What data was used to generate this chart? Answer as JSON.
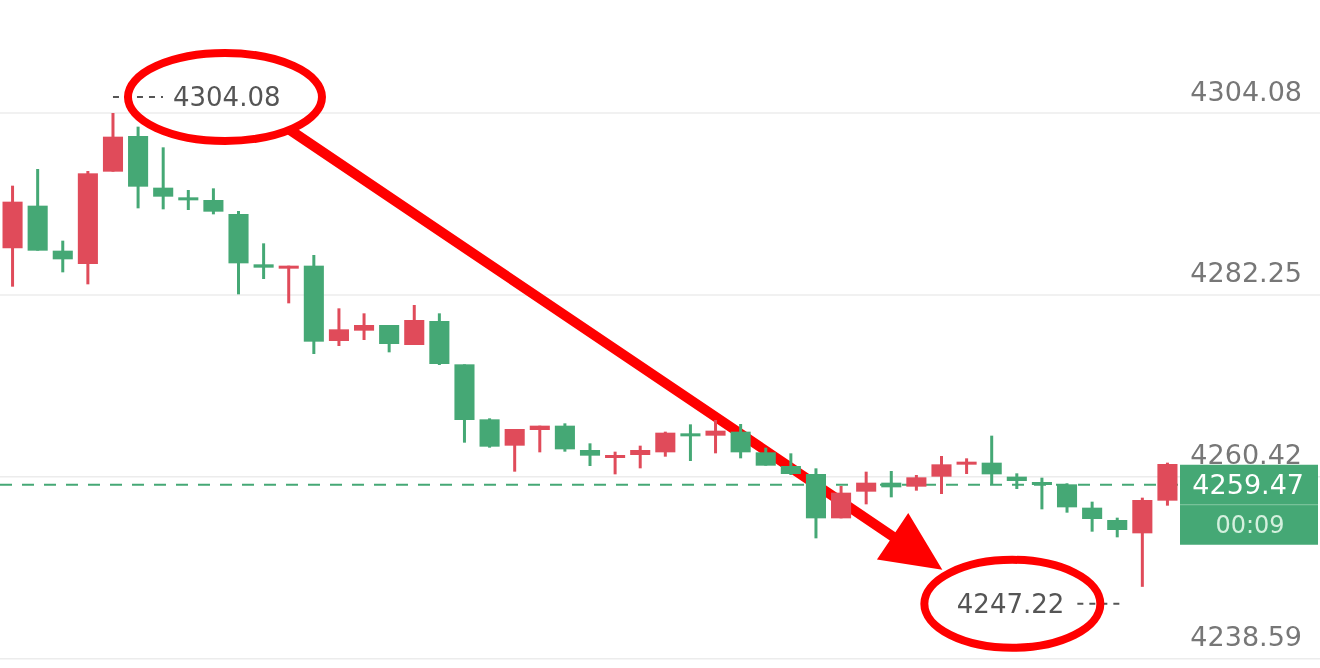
{
  "chart_data": {
    "type": "candlestick",
    "categories": [
      null,
      null,
      null,
      null,
      null,
      null,
      null,
      null,
      null,
      null,
      null,
      null,
      null,
      null,
      null,
      null,
      null,
      null,
      null,
      null,
      null,
      null,
      null,
      null,
      null,
      null,
      null,
      null,
      null,
      null,
      null,
      null,
      null,
      null,
      null,
      null,
      null,
      null,
      null,
      null,
      null,
      null,
      null,
      null,
      null,
      null,
      null
    ],
    "ohlc": [
      [
        4287.85,
        4295.36,
        4283.24,
        4293.44
      ],
      [
        4292.96,
        4297.36,
        4287.56,
        4287.56
      ],
      [
        4287.56,
        4288.76,
        4284.96,
        4286.52
      ],
      [
        4285.96,
        4297.12,
        4283.52,
        4296.84
      ],
      [
        4297.04,
        4304.08,
        4297.04,
        4301.24
      ],
      [
        4301.32,
        4302.44,
        4292.64,
        4295.24
      ],
      [
        4295.12,
        4299.96,
        4292.52,
        4294.04
      ],
      [
        4293.96,
        4294.84,
        4292.44,
        4293.64
      ],
      [
        4293.64,
        4295.04,
        4291.92,
        4292.24
      ],
      [
        4291.96,
        4292.32,
        4282.32,
        4286.04
      ],
      [
        4285.92,
        4288.44,
        4284.16,
        4285.52
      ],
      [
        4285.64,
        4285.76,
        4281.24,
        4285.76
      ],
      [
        4285.76,
        4287.04,
        4275.16,
        4276.64
      ],
      [
        4276.72,
        4280.64,
        4276.12,
        4278.12
      ],
      [
        4277.96,
        4280.04,
        4276.84,
        4278.64
      ],
      [
        4278.64,
        4278.64,
        4275.36,
        4276.36
      ],
      [
        4276.24,
        4281.04,
        4276.24,
        4279.24
      ],
      [
        4279.12,
        4280.04,
        4273.84,
        4273.96
      ],
      [
        4273.92,
        4273.92,
        4264.52,
        4267.24
      ],
      [
        4267.32,
        4267.44,
        4263.92,
        4264.04
      ],
      [
        4264.16,
        4266.16,
        4261.04,
        4266.16
      ],
      [
        4266.04,
        4266.56,
        4263.36,
        4266.56
      ],
      [
        4266.56,
        4266.84,
        4263.44,
        4263.72
      ],
      [
        4263.64,
        4264.44,
        4261.72,
        4262.96
      ],
      [
        4262.84,
        4263.44,
        4260.72,
        4263.04
      ],
      [
        4263.04,
        4264.16,
        4261.44,
        4263.64
      ],
      [
        4263.36,
        4265.84,
        4262.84,
        4265.72
      ],
      [
        4265.64,
        4266.72,
        4262.32,
        4265.44
      ],
      [
        4265.36,
        4267.24,
        4263.24,
        4265.96
      ],
      [
        4265.84,
        4266.76,
        4262.64,
        4263.36
      ],
      [
        4263.36,
        4263.92,
        4261.76,
        4261.76
      ],
      [
        4261.72,
        4263.24,
        4260.64,
        4260.76
      ],
      [
        4260.76,
        4261.44,
        4253.04,
        4255.44
      ],
      [
        4255.44,
        4259.32,
        4255.44,
        4258.52
      ],
      [
        4258.64,
        4261.04,
        4257.12,
        4259.72
      ],
      [
        4259.72,
        4261.12,
        4257.96,
        4259.16
      ],
      [
        4259.24,
        4260.64,
        4258.76,
        4260.36
      ],
      [
        4260.44,
        4262.92,
        4258.36,
        4261.92
      ],
      [
        4262.04,
        4262.64,
        4260.76,
        4262.24
      ],
      [
        4262.12,
        4265.36,
        4259.52,
        4260.72
      ],
      [
        4260.44,
        4260.84,
        4258.96,
        4259.92
      ],
      [
        4259.8,
        4260.32,
        4256.52,
        4259.6
      ],
      [
        4259.52,
        4259.64,
        4256.12,
        4256.76
      ],
      [
        4256.72,
        4257.44,
        4253.84,
        4255.36
      ],
      [
        4255.24,
        4255.52,
        4253.16,
        4254.04
      ],
      [
        4253.64,
        4257.92,
        4247.22,
        4257.64
      ],
      [
        4257.56,
        4262.12,
        4256.96,
        4261.96
      ]
    ],
    "colors": [
      "#e04b5a",
      "#45a875",
      "#45a875",
      "#e04b5a",
      "#e04b5a",
      "#45a875",
      "#45a875",
      "#45a875",
      "#45a875",
      "#45a875",
      "#45a875",
      "#e04b5a",
      "#45a875",
      "#e04b5a",
      "#e04b5a",
      "#45a875",
      "#e04b5a",
      "#45a875",
      "#45a875",
      "#45a875",
      "#e04b5a",
      "#e04b5a",
      "#45a875",
      "#45a875",
      "#e04b5a",
      "#e04b5a",
      "#e04b5a",
      "#45a875",
      "#e04b5a",
      "#45a875",
      "#45a875",
      "#45a875",
      "#45a875",
      "#e04b5a",
      "#e04b5a",
      "#45a875",
      "#e04b5a",
      "#e04b5a",
      "#e04b5a",
      "#45a875",
      "#45a875",
      "#45a875",
      "#45a875",
      "#45a875",
      "#45a875",
      "#e04b5a",
      "#e04b5a"
    ],
    "ylim": [
      4237.48,
      4317.64
    ],
    "yticks": [
      4238.59,
      4260.42,
      4282.25,
      4304.08
    ],
    "grid": "y",
    "ref_lines": [
      {
        "axis": "y",
        "value": 4259.47,
        "label": "4259.47",
        "color": "#45a875",
        "line_style": "dashed"
      }
    ],
    "annotations": [
      "4304.08",
      "4247.22",
      "00:09"
    ]
  }
}
